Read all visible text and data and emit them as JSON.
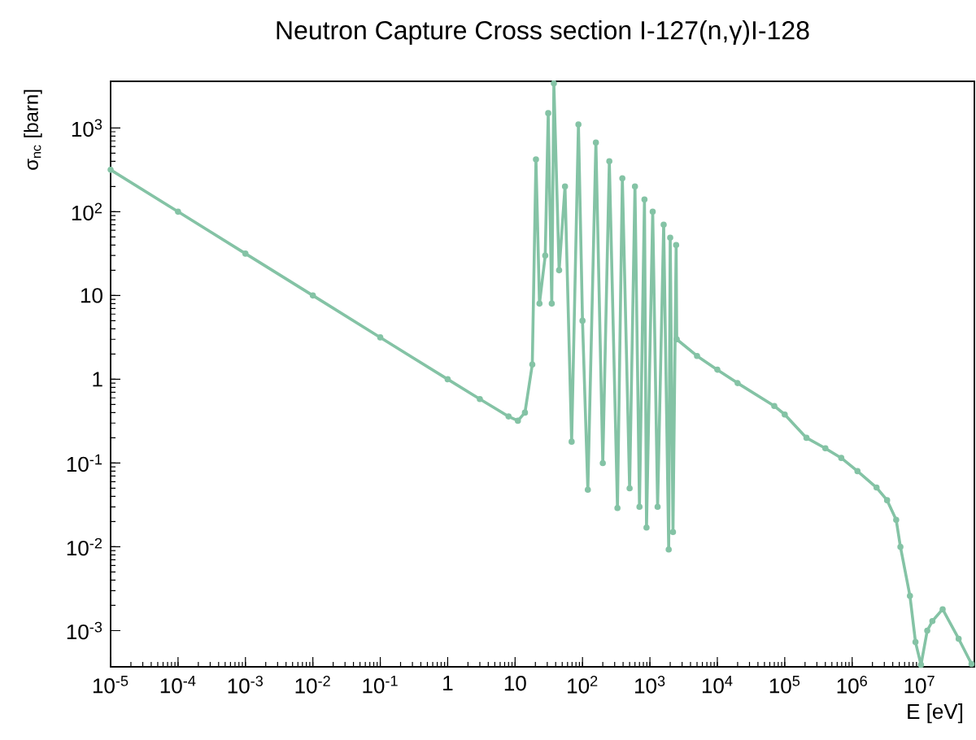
{
  "chart_data": {
    "type": "line",
    "title": "Neutron Capture Cross section I-127(n,γ)I-128",
    "xlabel": "E [eV]",
    "ylabel": "σ$_{nc}$ [barn]",
    "log": "xy",
    "marker": "circle",
    "line_style": "solid",
    "grid": false,
    "xlim": [
      1e-05,
      65000000.0
    ],
    "ylim": [
      0.00037,
      3600
    ],
    "xticks": [
      {
        "value": 1e-05,
        "label": "10$^{-5}$"
      },
      {
        "value": 0.0001,
        "label": "10$^{-4}$"
      },
      {
        "value": 0.001,
        "label": "10$^{-3}$"
      },
      {
        "value": 0.01,
        "label": "10$^{-2}$"
      },
      {
        "value": 0.1,
        "label": "10$^{-1}$"
      },
      1,
      10,
      {
        "value": 100,
        "label": "10$^{2}$"
      },
      {
        "value": 1000,
        "label": "10$^{3}$"
      },
      {
        "value": 10000,
        "label": "10$^{4}$"
      },
      {
        "value": 100000,
        "label": "10$^{5}$"
      },
      {
        "value": 1000000,
        "label": "10$^{6}$"
      },
      {
        "value": 10000000,
        "label": "10$^{7}$"
      }
    ],
    "yticks": [
      {
        "value": 0.001,
        "label": "10$^{-3}$"
      },
      {
        "value": 0.01,
        "label": "10$^{-2}$"
      },
      {
        "value": 0.1,
        "label": "10$^{-1}$"
      },
      1,
      10,
      {
        "value": 100,
        "label": "10$^{2}$"
      },
      {
        "value": 1000,
        "label": "10$^{3}$"
      }
    ],
    "series": [
      {
        "color": "#84c3a5",
        "x": [
          1e-05,
          0.0001,
          0.001,
          0.01,
          0.1,
          1,
          3,
          8,
          11,
          14,
          18,
          20.4,
          23,
          28,
          31,
          35,
          37.6,
          45,
          55,
          69,
          87,
          100,
          120,
          158,
          200,
          250,
          330,
          390,
          500,
          600,
          700,
          830,
          890,
          1100,
          1300,
          1600,
          1900,
          2000,
          2200,
          2450,
          2500,
          5000,
          10000,
          20000,
          70000,
          100000,
          210000,
          400000,
          690000,
          1200000,
          2300000,
          3300000,
          4500000,
          5200000,
          7200000,
          8700000,
          10500000,
          13000000,
          15500000,
          22000000,
          38000000,
          59000000
        ],
        "values": [
          316,
          100,
          31.6,
          10,
          3.16,
          1.0,
          0.58,
          0.36,
          0.32,
          0.4,
          1.5,
          420,
          8,
          30,
          1500,
          8,
          3400,
          20,
          200,
          0.18,
          1100,
          5,
          0.048,
          670,
          0.1,
          400,
          0.029,
          250,
          0.05,
          200,
          0.03,
          140,
          0.017,
          100,
          0.03,
          70,
          0.0093,
          49,
          0.015,
          40,
          3.0,
          1.9,
          1.3,
          0.9,
          0.48,
          0.38,
          0.2,
          0.15,
          0.115,
          0.08,
          0.051,
          0.036,
          0.021,
          0.01,
          0.0026,
          0.00073,
          0.00039,
          0.001,
          0.0013,
          0.0018,
          0.0008,
          0.0004
        ]
      }
    ]
  }
}
